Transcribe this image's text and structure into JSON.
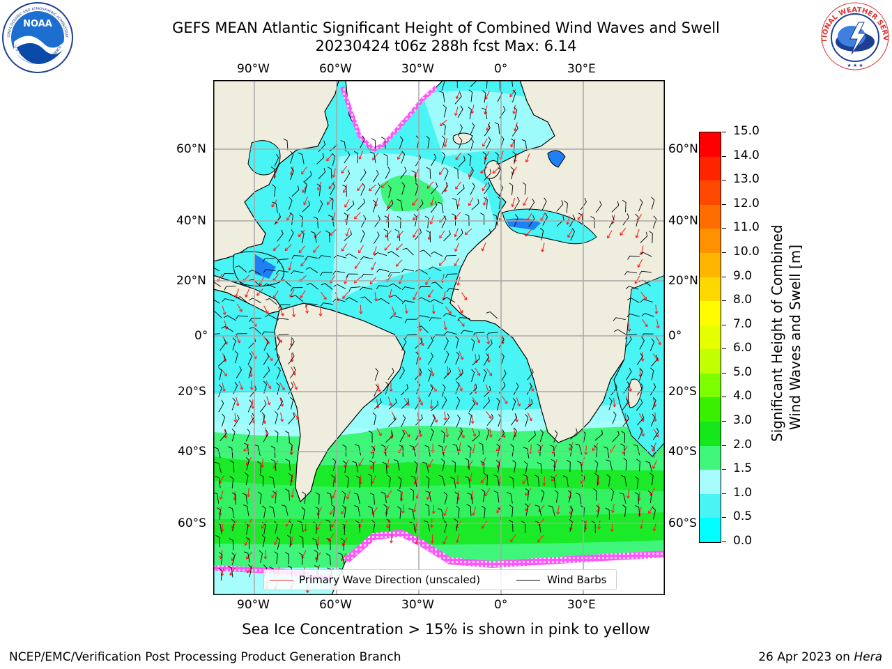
{
  "header": {
    "title_line1": "GEFS MEAN Atlantic Significant Height of Combined Wind Waves and Swell",
    "title_line2": "20230424 t06z 288h fcst   Max: 6.14"
  },
  "logos": {
    "left": "noara-logo",
    "left_text": "NOAA",
    "left_ring_text": "NATIONAL OCEANIC AND ATMOSPHERIC ADMINISTRATION",
    "left_ring_bottom": "U.S. DEPARTMENT OF COMMERCE",
    "right_ring_text": "NATIONAL WEATHER SERVICE"
  },
  "map": {
    "lon_labels": [
      "90°W",
      "60°W",
      "30°W",
      "0°",
      "30°E"
    ],
    "lat_labels_left": [
      "60°N",
      "40°N",
      "20°N",
      "0°",
      "20°S",
      "40°S",
      "60°S"
    ],
    "lat_labels_right": [
      "60°N",
      "40°N",
      "20°N",
      "0°",
      "20°S",
      "40°S",
      "60°S"
    ],
    "colors": {
      "land": "#efedde",
      "ocean_low": "#48f4f4",
      "ocean_mid": "#a6fdfc",
      "ocean_high": "#3ff57a",
      "ocean_top": "#14e81a",
      "barb": "#000000",
      "arrow": "#ff2020",
      "ice": "#ff55ff"
    }
  },
  "legend": {
    "wave_dir": "Primary Wave Direction (unscaled)",
    "wind_barbs": "Wind Barbs"
  },
  "colorbar": {
    "ticks": [
      "15.0",
      "14.0",
      "13.0",
      "12.0",
      "11.0",
      "10.0",
      "9.0",
      "8.0",
      "7.0",
      "6.0",
      "5.0",
      "4.0",
      "3.0",
      "2.0",
      "1.5",
      "1.0",
      "0.5",
      "0.0"
    ],
    "colors": [
      "#ff0000",
      "#ff2400",
      "#ff4800",
      "#ff6c00",
      "#ff9000",
      "#ffb400",
      "#ffd800",
      "#fffc00",
      "#e6ff00",
      "#c2ff00",
      "#7dff00",
      "#39f000",
      "#14e81a",
      "#3ff57a",
      "#a6fdfc",
      "#48f4f4",
      "#00ffff",
      "#0080ff",
      "#0000ff"
    ],
    "label_line1": "Significant Height of Combined",
    "label_line2": "Wind Waves and Swell [m]"
  },
  "footer": {
    "ice_note": "Sea Ice Concentration > 15% is shown in pink to yellow",
    "producer": "NCEP/EMC/Verification Post Processing Product Generation Branch",
    "date": "26 Apr 2023 on",
    "machine": "Hera"
  }
}
